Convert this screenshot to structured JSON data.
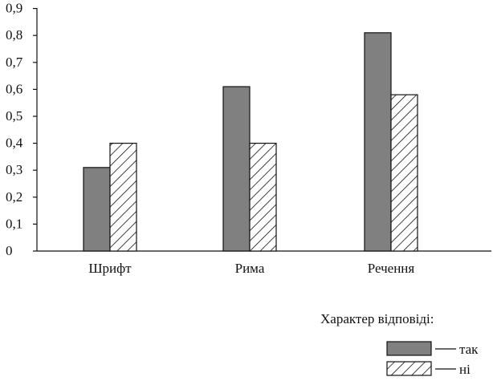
{
  "chart_data": {
    "type": "bar",
    "categories": [
      "Шрифт",
      "Рима",
      "Речення"
    ],
    "series": [
      {
        "name": "так",
        "values": [
          0.31,
          0.61,
          0.81
        ],
        "color": "#808080",
        "fill": "solid"
      },
      {
        "name": "ні",
        "values": [
          0.4,
          0.4,
          0.58
        ],
        "color": "#ffffff",
        "fill": "hatch"
      }
    ],
    "yticks": [
      "0",
      "0,1",
      "0,2",
      "0,3",
      "0,4",
      "0,5",
      "0,6",
      "0,7",
      "0,8",
      "0,9"
    ],
    "ylim": [
      0,
      0.9
    ],
    "grid": false,
    "legend_title": "Характер відповіді:",
    "legend_placement": "bottom-right"
  }
}
